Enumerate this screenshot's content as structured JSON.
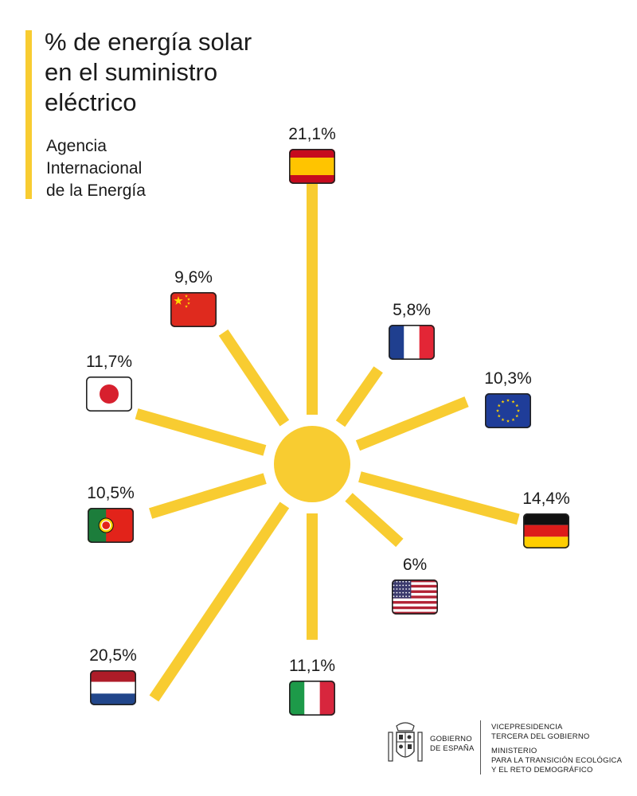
{
  "header": {
    "title_lines": [
      "% de energía solar",
      "en el suministro",
      "eléctrico"
    ],
    "source_lines": [
      "Agencia",
      "Internacional",
      "de la Energía"
    ]
  },
  "colors": {
    "sun": "#f8cc31",
    "text": "#1a1a1a"
  },
  "chart_data": {
    "type": "radial-bar",
    "title": "% de energía solar en el suministro eléctrico",
    "unit": "%",
    "items": [
      {
        "country": "España",
        "label": "21,1%",
        "value": 21.1,
        "flag": "spain-flag-icon"
      },
      {
        "country": "Francia",
        "label": "5,8%",
        "value": 5.8,
        "flag": "france-flag-icon"
      },
      {
        "country": "Unión Europea",
        "label": "10,3%",
        "value": 10.3,
        "flag": "eu-flag-icon"
      },
      {
        "country": "Alemania",
        "label": "14,4%",
        "value": 14.4,
        "flag": "germany-flag-icon"
      },
      {
        "country": "Estados Unidos",
        "label": "6%",
        "value": 6.0,
        "flag": "usa-flag-icon"
      },
      {
        "country": "Italia",
        "label": "11,1%",
        "value": 11.1,
        "flag": "italy-flag-icon"
      },
      {
        "country": "Países Bajos",
        "label": "20,5%",
        "value": 20.5,
        "flag": "netherlands-flag-icon"
      },
      {
        "country": "Portugal",
        "label": "10,5%",
        "value": 10.5,
        "flag": "portugal-flag-icon"
      },
      {
        "country": "Japón",
        "label": "11,7%",
        "value": 11.7,
        "flag": "japan-flag-icon"
      },
      {
        "country": "China",
        "label": "9,6%",
        "value": 9.6,
        "flag": "china-flag-icon"
      }
    ]
  },
  "footer": {
    "gobierno_lines": [
      "GOBIERNO",
      "DE ESPAÑA"
    ],
    "vice_lines": [
      "VICEPRESIDENCIA",
      "TERCERA DEL GOBIERNO"
    ],
    "ministerio_lines": [
      "MINISTERIO",
      "PARA LA TRANSICIÓN ECOLÓGICA",
      "Y EL RETO DEMOGRÁFICO"
    ]
  }
}
